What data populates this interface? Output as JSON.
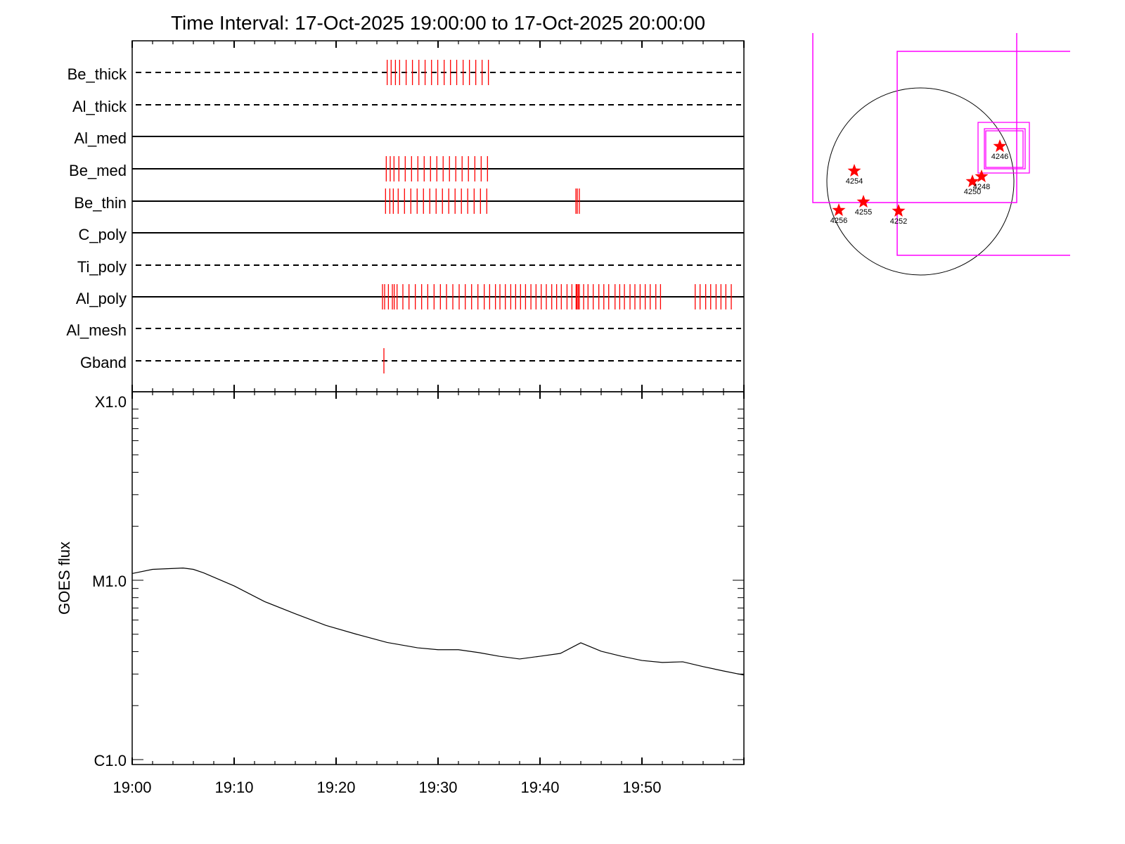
{
  "chart_data": [
    {
      "type": "scatter",
      "name": "filter-timeline",
      "title": "Time Interval: 17-Oct-2025 19:00:00 to 17-Oct-2025 20:00:00",
      "x_unit": "minutes after 19:00",
      "xlim": [
        0,
        60
      ],
      "rows": [
        {
          "label": "Be_thick",
          "style": "dashed",
          "times": [
            25.01,
            25.4,
            25.82,
            26.23,
            26.87,
            27.49,
            28.12,
            28.73,
            29.36,
            29.97,
            30.6,
            31.22,
            31.83,
            32.46,
            33.08,
            33.7,
            34.32,
            34.94
          ]
        },
        {
          "label": "Al_thick",
          "style": "dashed",
          "times": []
        },
        {
          "label": "Al_med",
          "style": "solid",
          "times": []
        },
        {
          "label": "Be_med",
          "style": "solid",
          "times": [
            24.92,
            25.31,
            25.68,
            26.16,
            26.78,
            27.4,
            28.02,
            28.64,
            29.26,
            29.88,
            30.5,
            31.12,
            31.74,
            32.36,
            32.98,
            33.61,
            34.23,
            34.85
          ]
        },
        {
          "label": "Be_thin",
          "style": "solid",
          "times": [
            24.85,
            25.27,
            25.61,
            26.09,
            26.71,
            27.33,
            27.95,
            28.57,
            29.19,
            29.81,
            30.43,
            31.05,
            31.67,
            32.29,
            32.91,
            33.54,
            34.16,
            34.78,
            43.52,
            43.66,
            43.86
          ]
        },
        {
          "label": "C_poly",
          "style": "solid",
          "times": []
        },
        {
          "label": "Ti_poly",
          "style": "dashed",
          "times": []
        },
        {
          "label": "Al_poly",
          "style": "solid",
          "times": [
            24.55,
            24.76,
            25.13,
            25.52,
            25.7,
            25.98,
            26.55,
            27.15,
            27.77,
            28.39,
            28.99,
            29.61,
            30.23,
            30.83,
            31.45,
            32.07,
            32.67,
            33.29,
            33.91,
            34.53,
            35.06,
            35.63,
            36.07,
            36.6,
            37.13,
            37.61,
            38.09,
            38.58,
            39.11,
            39.61,
            40.12,
            40.62,
            41.15,
            41.63,
            42.09,
            42.65,
            43.13,
            43.54,
            43.63,
            43.75,
            43.86,
            44.28,
            44.71,
            45.22,
            45.77,
            46.26,
            46.74,
            47.36,
            47.82,
            48.28,
            48.83,
            49.31,
            49.82,
            50.32,
            50.81,
            51.36,
            51.82,
            55.22,
            55.7,
            56.25,
            56.74,
            57.27,
            57.75,
            58.23,
            58.76
          ]
        },
        {
          "label": "Al_mesh",
          "style": "dashed",
          "times": []
        },
        {
          "label": "Gband",
          "style": "dashed",
          "times": [
            24.69
          ]
        }
      ]
    },
    {
      "type": "line",
      "name": "goes-flux",
      "ylabel": "GOES flux",
      "yscale": "log",
      "ylim": [
        1e-06,
        0.0001
      ],
      "ytick_labels": [
        "C1.0",
        "M1.0",
        "X1.0"
      ],
      "ytick_values": [
        1e-06,
        1e-05,
        0.0001
      ],
      "xtick_labels": [
        "19:00",
        "19:10",
        "19:20",
        "19:30",
        "19:40",
        "19:50"
      ],
      "xtick_values": [
        0,
        10,
        20,
        30,
        40,
        50
      ],
      "xlim": [
        0,
        60
      ],
      "x": [
        0,
        2,
        5,
        6,
        7,
        10,
        13,
        16,
        19,
        22,
        25,
        28,
        30,
        32,
        34,
        36,
        38,
        40,
        42,
        44,
        46,
        48,
        50,
        52,
        54,
        56,
        58,
        60
      ],
      "y": [
        1.09e-05,
        1.15e-05,
        1.17e-05,
        1.15e-05,
        1.1e-05,
        9.3e-06,
        7.6e-06,
        6.5e-06,
        5.6e-06,
        5e-06,
        4.5e-06,
        4.2e-06,
        4.1e-06,
        4.1e-06,
        3.95e-06,
        3.77e-06,
        3.64e-06,
        3.77e-06,
        3.91e-06,
        4.48e-06,
        4.02e-06,
        3.77e-06,
        3.57e-06,
        3.48e-06,
        3.51e-06,
        3.3e-06,
        3.12e-06,
        2.96e-06
      ]
    },
    {
      "type": "scatter",
      "name": "solar-disk-map",
      "regions": [
        "4246",
        "4254",
        "4250",
        "4248",
        "4255",
        "4256",
        "4252"
      ]
    }
  ],
  "colors": {
    "axis": "#000000",
    "tick": "#ff0000",
    "fov": "#ff00ff",
    "star": "#ff0000"
  }
}
